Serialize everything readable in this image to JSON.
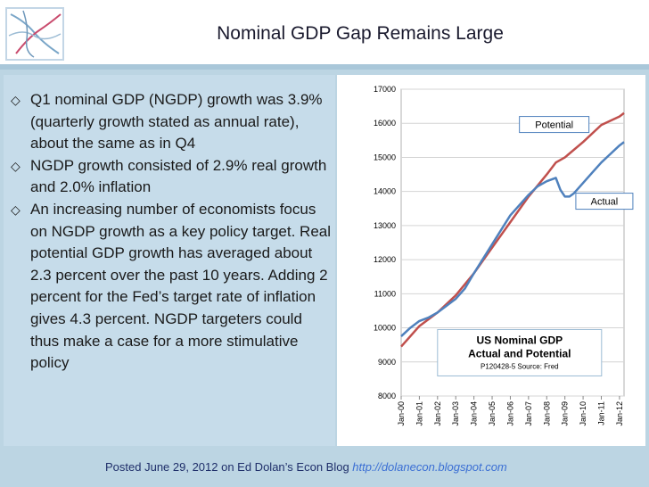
{
  "slide": {
    "title": "Nominal GDP Gap Remains Large",
    "bullets": [
      "Q1 nominal GDP (NGDP) growth was 3.9% (quarterly growth stated as annual rate), about the same as in Q4",
      "NGDP growth consisted of 2.9% real growth and 2.0% inflation",
      "An increasing number of economists focus on NGDP growth as a key policy target. Real potential GDP growth has averaged about 2.3 percent over the past 10 years. Adding 2 percent for the Fed’s target rate of inflation gives 4.3 percent. NGDP targeters could thus make a case for a more stimulative policy"
    ],
    "bullet_icon": "diamond-outline-bullet",
    "footer": {
      "text": "Posted June 29, 2012 on Ed Dolan’s Econ Blog ",
      "link": "http://dolanecon.blogspot.com"
    }
  },
  "colors": {
    "potential": "#c0504d",
    "actual": "#4f81bd",
    "title_text": "#1a1a2e",
    "footer_text": "#1f2f6a",
    "footer_link": "#3b6fd4"
  },
  "chart_data": {
    "type": "line",
    "title": "US Nominal GDP",
    "subtitle": "Actual and Potential",
    "source": "P120428-5 Source: Fred",
    "ylim": [
      8000,
      17000
    ],
    "yticks": [
      "8000",
      "9000",
      "10000",
      "11000",
      "12000",
      "13000",
      "14000",
      "15000",
      "16000",
      "17000"
    ],
    "xticks": [
      "Jan-00",
      "Jan-01",
      "Jan-02",
      "Jan-03",
      "Jan-04",
      "Jan-05",
      "Jan-06",
      "Jan-07",
      "Jan-08",
      "Jan-09",
      "Jan-10",
      "Jan-11",
      "Jan-12"
    ],
    "grid": "horizontal",
    "annotations": [
      "Potential",
      "Actual"
    ],
    "series": [
      {
        "name": "Potential",
        "x": [
          2000.0,
          2001.0,
          2002.0,
          2003.0,
          2004.0,
          2005.0,
          2006.0,
          2007.0,
          2008.0,
          2008.5,
          2009.0,
          2010.0,
          2011.0,
          2012.0,
          2012.25
        ],
        "values": [
          9450,
          10050,
          10450,
          10950,
          11600,
          12350,
          13100,
          13850,
          14500,
          14850,
          15000,
          15450,
          15950,
          16200,
          16300
        ]
      },
      {
        "name": "Actual",
        "x": [
          2000.0,
          2000.5,
          2001.0,
          2001.5,
          2002.0,
          2002.5,
          2003.0,
          2003.5,
          2004.0,
          2005.0,
          2006.0,
          2007.0,
          2007.5,
          2008.0,
          2008.5,
          2008.75,
          2009.0,
          2009.25,
          2009.5,
          2010.0,
          2010.5,
          2011.0,
          2011.5,
          2012.0,
          2012.25
        ],
        "values": [
          9750,
          10000,
          10200,
          10300,
          10450,
          10650,
          10850,
          11150,
          11600,
          12450,
          13300,
          13900,
          14150,
          14300,
          14400,
          14050,
          13850,
          13850,
          13950,
          14250,
          14550,
          14850,
          15100,
          15350,
          15450
        ]
      }
    ]
  }
}
